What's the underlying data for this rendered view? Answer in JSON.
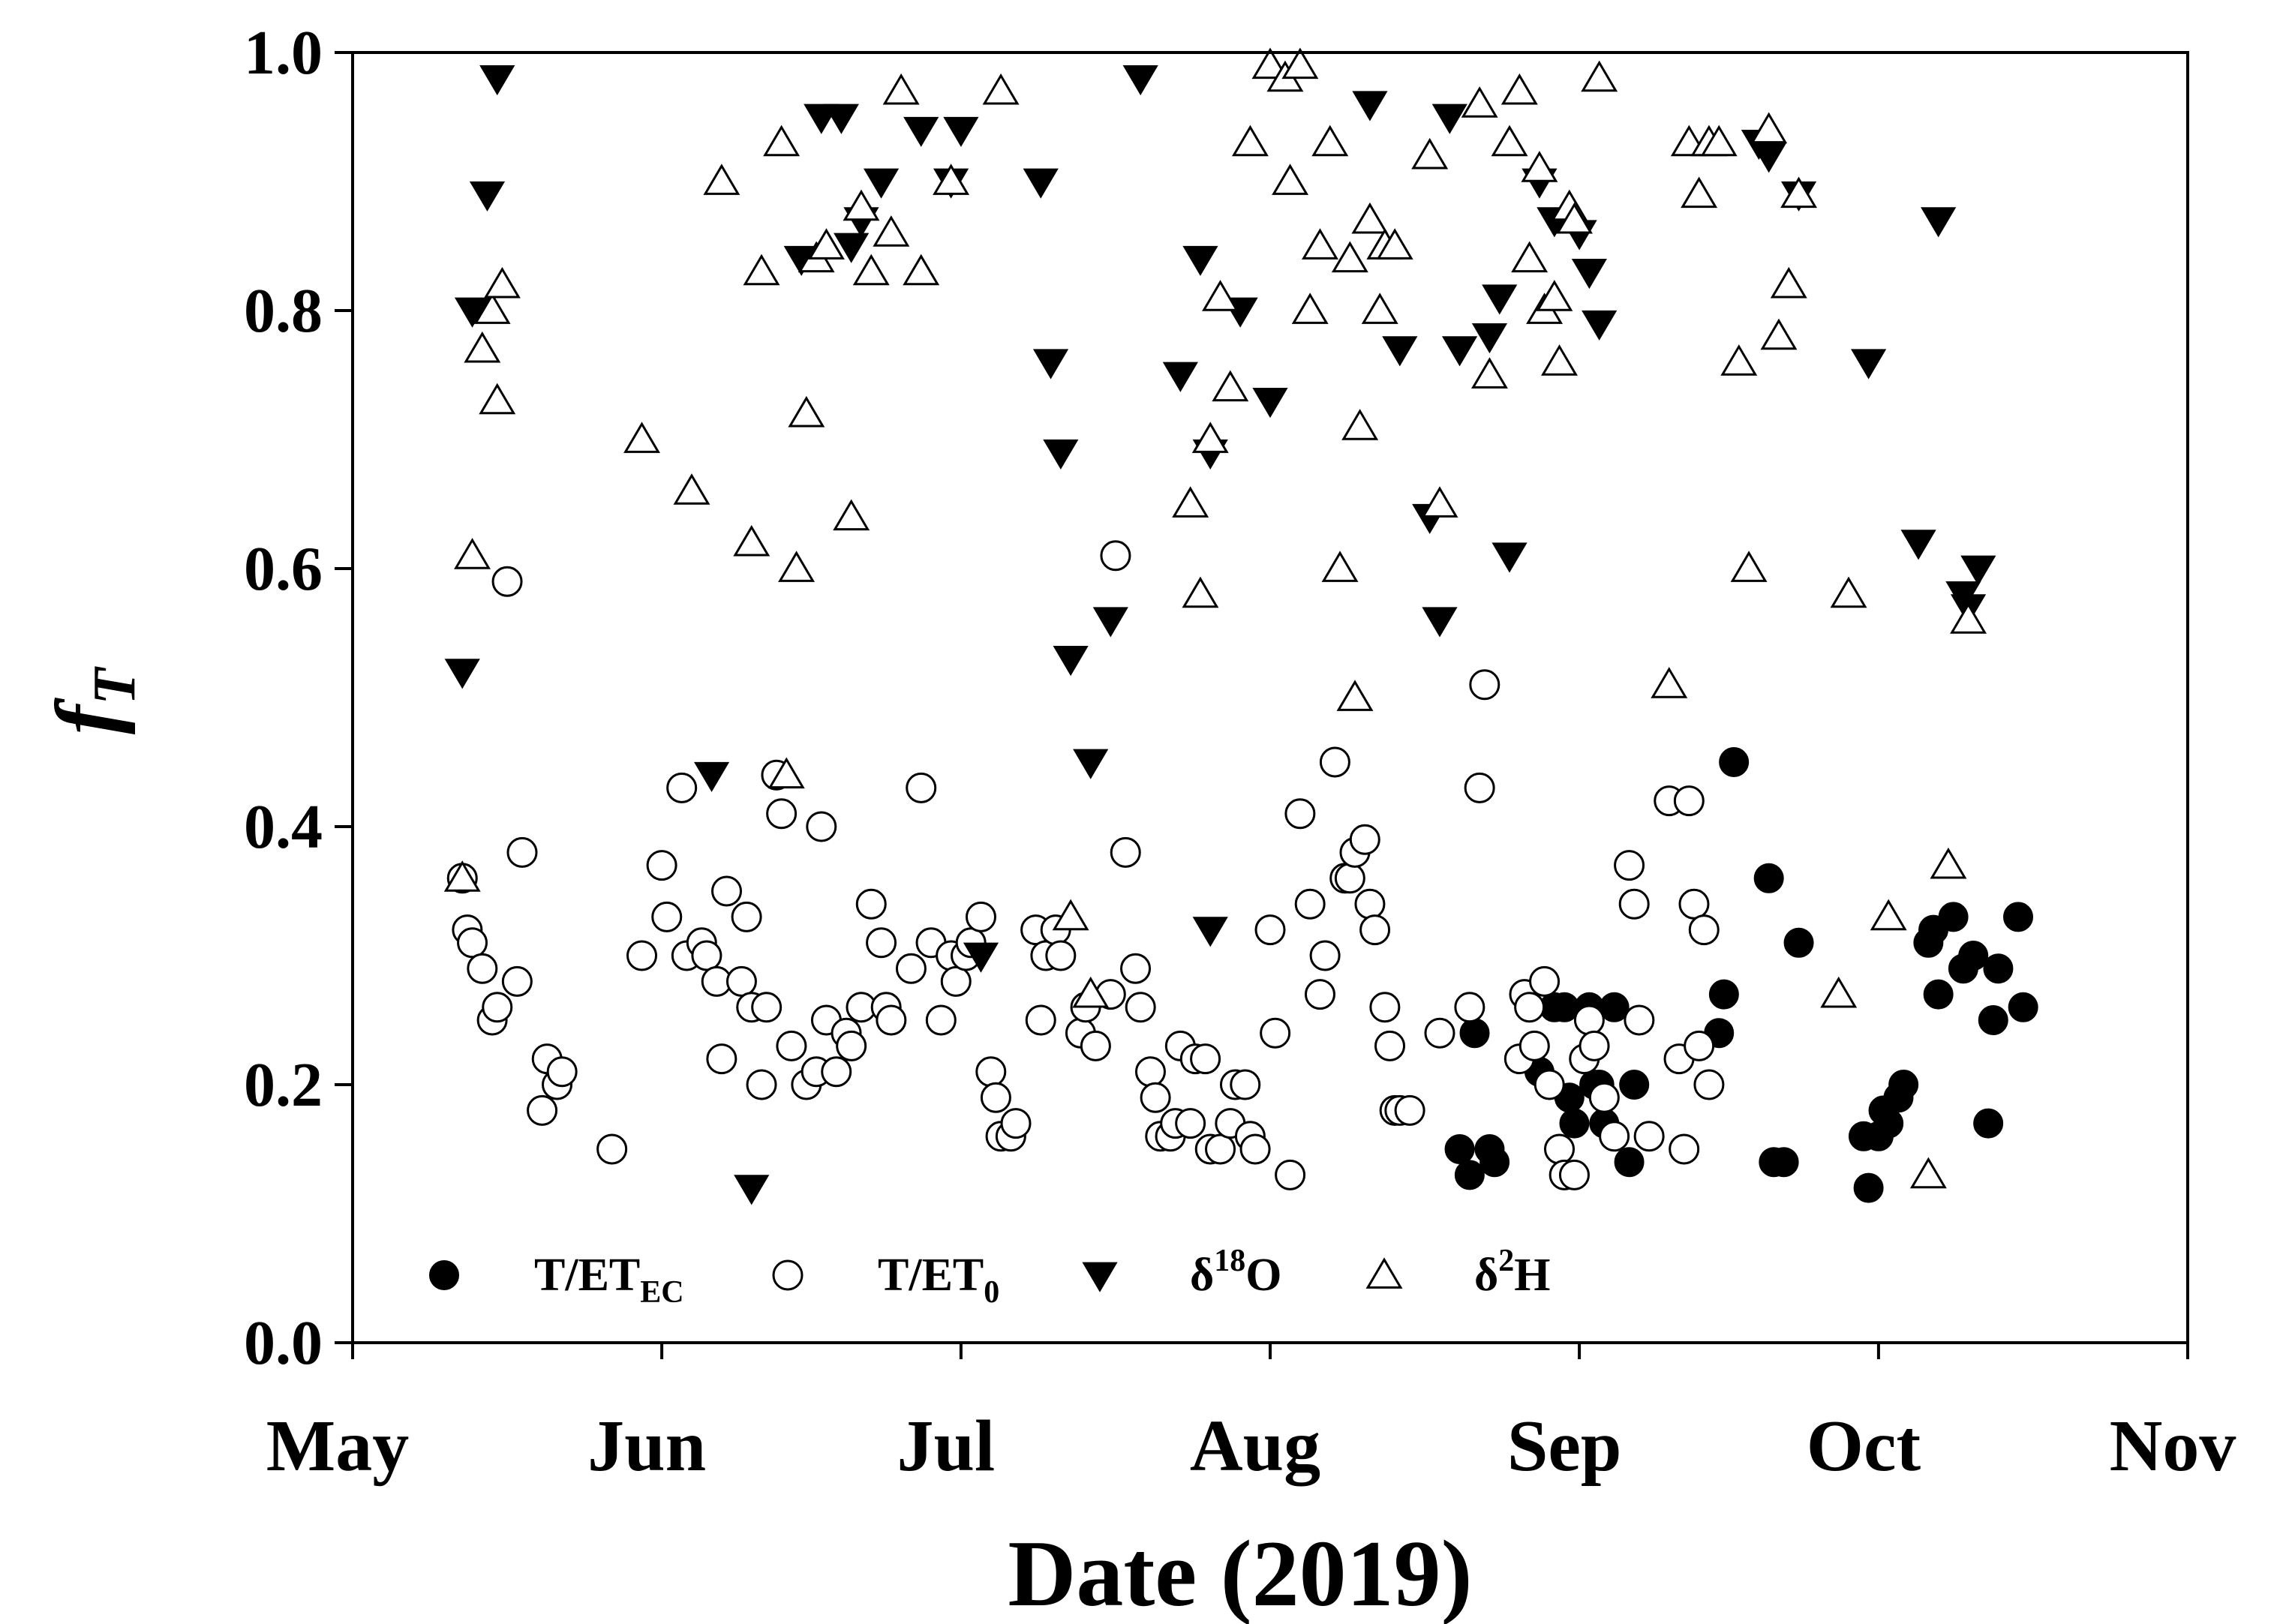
{
  "chart_data": {
    "type": "scatter",
    "xlabel": "Date (2019)",
    "ylabel": "f",
    "ylabel_sub": "T",
    "ylim": [
      0,
      1
    ],
    "y_ticks": [
      "0.0",
      "0.2",
      "0.4",
      "0.6",
      "0.8",
      "1.0"
    ],
    "x_range_doy": [
      121,
      305
    ],
    "x_ticks": [
      {
        "label": "May",
        "doy": 121
      },
      {
        "label": "Jun",
        "doy": 152
      },
      {
        "label": "Jul",
        "doy": 182
      },
      {
        "label": "Aug",
        "doy": 213
      },
      {
        "label": "Sep",
        "doy": 244
      },
      {
        "label": "Oct",
        "doy": 274
      },
      {
        "label": "Nov",
        "doy": 305
      }
    ],
    "series": [
      {
        "name": "T/ET_EC",
        "legend_main": "T/ET",
        "legend_sub": "EC",
        "legend_sup": "",
        "marker": "filled-circle",
        "points": [
          [
            232,
            0.15
          ],
          [
            233,
            0.13
          ],
          [
            233.5,
            0.24
          ],
          [
            235,
            0.15
          ],
          [
            235.5,
            0.14
          ],
          [
            240,
            0.21
          ],
          [
            241.5,
            0.26
          ],
          [
            242.5,
            0.26
          ],
          [
            243,
            0.19
          ],
          [
            243.5,
            0.17
          ],
          [
            245,
            0.26
          ],
          [
            245.5,
            0.2
          ],
          [
            246,
            0.2
          ],
          [
            246.5,
            0.17
          ],
          [
            247.5,
            0.26
          ],
          [
            249,
            0.14
          ],
          [
            249.5,
            0.2
          ],
          [
            258,
            0.24
          ],
          [
            258.5,
            0.27
          ],
          [
            259.5,
            0.45
          ],
          [
            263,
            0.36
          ],
          [
            263.5,
            0.14
          ],
          [
            264.5,
            0.14
          ],
          [
            266,
            0.31
          ],
          [
            272.5,
            0.16
          ],
          [
            273,
            0.12
          ],
          [
            274,
            0.16
          ],
          [
            274.5,
            0.18
          ],
          [
            275,
            0.17
          ],
          [
            276,
            0.19
          ],
          [
            276.5,
            0.2
          ],
          [
            279,
            0.31
          ],
          [
            279.5,
            0.32
          ],
          [
            280,
            0.27
          ],
          [
            281.5,
            0.33
          ],
          [
            282.5,
            0.29
          ],
          [
            283.5,
            0.3
          ],
          [
            285,
            0.17
          ],
          [
            285.5,
            0.25
          ],
          [
            286,
            0.29
          ],
          [
            288,
            0.33
          ],
          [
            288.5,
            0.26
          ]
        ]
      },
      {
        "name": "T/ET_0",
        "legend_main": "T/ET",
        "legend_sub": "0",
        "legend_sup": "",
        "marker": "open-circle",
        "points": [
          [
            132,
            0.36
          ],
          [
            132.5,
            0.32
          ],
          [
            133,
            0.31
          ],
          [
            134,
            0.29
          ],
          [
            135,
            0.25
          ],
          [
            135.5,
            0.26
          ],
          [
            136.5,
            0.59
          ],
          [
            137.5,
            0.28
          ],
          [
            138,
            0.38
          ],
          [
            140,
            0.18
          ],
          [
            140.5,
            0.22
          ],
          [
            141.5,
            0.2
          ],
          [
            142,
            0.21
          ],
          [
            147,
            0.15
          ],
          [
            150,
            0.3
          ],
          [
            152,
            0.37
          ],
          [
            152.5,
            0.33
          ],
          [
            154,
            0.43
          ],
          [
            154.5,
            0.3
          ],
          [
            156,
            0.31
          ],
          [
            156.5,
            0.3
          ],
          [
            157.5,
            0.28
          ],
          [
            158,
            0.22
          ],
          [
            158.5,
            0.35
          ],
          [
            160,
            0.28
          ],
          [
            160.5,
            0.33
          ],
          [
            161,
            0.26
          ],
          [
            162,
            0.2
          ],
          [
            162.5,
            0.26
          ],
          [
            163.5,
            0.44
          ],
          [
            164,
            0.41
          ],
          [
            165,
            0.23
          ],
          [
            166.5,
            0.2
          ],
          [
            167.5,
            0.21
          ],
          [
            168,
            0.4
          ],
          [
            168.5,
            0.25
          ],
          [
            169.5,
            0.21
          ],
          [
            170.5,
            0.24
          ],
          [
            171,
            0.23
          ],
          [
            172,
            0.26
          ],
          [
            173,
            0.34
          ],
          [
            174,
            0.31
          ],
          [
            174.5,
            0.26
          ],
          [
            175,
            0.25
          ],
          [
            177,
            0.29
          ],
          [
            178,
            0.43
          ],
          [
            179,
            0.31
          ],
          [
            180,
            0.25
          ],
          [
            181,
            0.3
          ],
          [
            181.5,
            0.28
          ],
          [
            182.5,
            0.3
          ],
          [
            183,
            0.31
          ],
          [
            184,
            0.33
          ],
          [
            185,
            0.21
          ],
          [
            185.5,
            0.19
          ],
          [
            186,
            0.16
          ],
          [
            187,
            0.16
          ],
          [
            187.5,
            0.17
          ],
          [
            189.5,
            0.32
          ],
          [
            190,
            0.25
          ],
          [
            190.5,
            0.3
          ],
          [
            191.5,
            0.32
          ],
          [
            192,
            0.3
          ],
          [
            194,
            0.24
          ],
          [
            194.5,
            0.26
          ],
          [
            195.5,
            0.23
          ],
          [
            197,
            0.27
          ],
          [
            197.5,
            0.61
          ],
          [
            198.5,
            0.38
          ],
          [
            199.5,
            0.29
          ],
          [
            200,
            0.26
          ],
          [
            201,
            0.21
          ],
          [
            201.5,
            0.19
          ],
          [
            202,
            0.16
          ],
          [
            203,
            0.16
          ],
          [
            203.5,
            0.17
          ],
          [
            204,
            0.23
          ],
          [
            205,
            0.17
          ],
          [
            205.5,
            0.22
          ],
          [
            206.5,
            0.22
          ],
          [
            207,
            0.15
          ],
          [
            208,
            0.15
          ],
          [
            209,
            0.17
          ],
          [
            209.5,
            0.2
          ],
          [
            210.5,
            0.2
          ],
          [
            211,
            0.16
          ],
          [
            211.5,
            0.15
          ],
          [
            213,
            0.32
          ],
          [
            213.5,
            0.24
          ],
          [
            215,
            0.13
          ],
          [
            216,
            0.41
          ],
          [
            217,
            0.34
          ],
          [
            218,
            0.27
          ],
          [
            218.5,
            0.3
          ],
          [
            219.5,
            0.45
          ],
          [
            220.5,
            0.36
          ],
          [
            221,
            0.36
          ],
          [
            221.5,
            0.38
          ],
          [
            222.5,
            0.39
          ],
          [
            223,
            0.34
          ],
          [
            223.5,
            0.32
          ],
          [
            224.5,
            0.26
          ],
          [
            225,
            0.23
          ],
          [
            225.5,
            0.18
          ],
          [
            226,
            0.18
          ],
          [
            227,
            0.18
          ],
          [
            230,
            0.24
          ],
          [
            233,
            0.26
          ],
          [
            234,
            0.43
          ],
          [
            234.5,
            0.51
          ],
          [
            238,
            0.22
          ],
          [
            238.5,
            0.27
          ],
          [
            239,
            0.26
          ],
          [
            239.5,
            0.23
          ],
          [
            240.5,
            0.28
          ],
          [
            241,
            0.2
          ],
          [
            242,
            0.15
          ],
          [
            242.5,
            0.13
          ],
          [
            243.5,
            0.13
          ],
          [
            244.5,
            0.22
          ],
          [
            245,
            0.25
          ],
          [
            245.5,
            0.23
          ],
          [
            246.5,
            0.19
          ],
          [
            247.5,
            0.16
          ],
          [
            249,
            0.37
          ],
          [
            249.5,
            0.34
          ],
          [
            250,
            0.25
          ],
          [
            251,
            0.16
          ],
          [
            253,
            0.42
          ],
          [
            254,
            0.22
          ],
          [
            254.5,
            0.15
          ],
          [
            255,
            0.42
          ],
          [
            255.5,
            0.34
          ],
          [
            256,
            0.23
          ],
          [
            256.5,
            0.32
          ],
          [
            257,
            0.2
          ]
        ]
      },
      {
        "name": "δ18O",
        "legend_main": "δ",
        "legend_sub": "",
        "legend_sup": "18",
        "legend_tail": "O",
        "marker": "filled-triangle-down",
        "points": [
          [
            132,
            0.52
          ],
          [
            133,
            0.8
          ],
          [
            134.5,
            0.89
          ],
          [
            135.5,
            0.98
          ],
          [
            157,
            0.44
          ],
          [
            161,
            0.12
          ],
          [
            166,
            0.84
          ],
          [
            168,
            0.95
          ],
          [
            170,
            0.95
          ],
          [
            171,
            0.85
          ],
          [
            172,
            0.87
          ],
          [
            174,
            0.9
          ],
          [
            178,
            0.94
          ],
          [
            181,
            0.9
          ],
          [
            182,
            0.94
          ],
          [
            184,
            0.3
          ],
          [
            190,
            0.9
          ],
          [
            191,
            0.76
          ],
          [
            192,
            0.69
          ],
          [
            193,
            0.53
          ],
          [
            195,
            0.45
          ],
          [
            197,
            0.56
          ],
          [
            200,
            0.98
          ],
          [
            204,
            0.75
          ],
          [
            206,
            0.84
          ],
          [
            207,
            0.69
          ],
          [
            207,
            0.32
          ],
          [
            210,
            0.8
          ],
          [
            213,
            0.73
          ],
          [
            223,
            0.96
          ],
          [
            226,
            0.77
          ],
          [
            229,
            0.64
          ],
          [
            230,
            0.56
          ],
          [
            231,
            0.95
          ],
          [
            232,
            0.77
          ],
          [
            235,
            0.78
          ],
          [
            236,
            0.81
          ],
          [
            237,
            0.61
          ],
          [
            240,
            0.9
          ],
          [
            241.5,
            0.87
          ],
          [
            244,
            0.86
          ],
          [
            245,
            0.83
          ],
          [
            246,
            0.79
          ],
          [
            262,
            0.93
          ],
          [
            263,
            0.92
          ],
          [
            266,
            0.89
          ],
          [
            273,
            0.76
          ],
          [
            278,
            0.62
          ],
          [
            280,
            0.87
          ],
          [
            282.5,
            0.58
          ],
          [
            283,
            0.57
          ],
          [
            284,
            0.6
          ]
        ]
      },
      {
        "name": "δ2H",
        "legend_main": "δ",
        "legend_sub": "",
        "legend_sup": "2",
        "legend_tail": "H",
        "marker": "open-triangle-up",
        "points": [
          [
            132,
            0.36
          ],
          [
            133,
            0.61
          ],
          [
            134,
            0.77
          ],
          [
            135,
            0.8
          ],
          [
            135.5,
            0.73
          ],
          [
            136,
            0.82
          ],
          [
            150,
            0.7
          ],
          [
            155,
            0.66
          ],
          [
            158,
            0.9
          ],
          [
            161,
            0.62
          ],
          [
            162,
            0.83
          ],
          [
            164,
            0.93
          ],
          [
            164.5,
            0.44
          ],
          [
            165.5,
            0.6
          ],
          [
            166.5,
            0.72
          ],
          [
            167.5,
            0.84
          ],
          [
            168.5,
            0.85
          ],
          [
            171,
            0.64
          ],
          [
            172,
            0.88
          ],
          [
            173,
            0.83
          ],
          [
            175,
            0.86
          ],
          [
            176,
            0.97
          ],
          [
            178,
            0.83
          ],
          [
            181,
            0.9
          ],
          [
            186,
            0.97
          ],
          [
            193,
            0.33
          ],
          [
            195,
            0.27
          ],
          [
            205,
            0.65
          ],
          [
            206,
            0.58
          ],
          [
            207,
            0.7
          ],
          [
            208,
            0.81
          ],
          [
            209,
            0.74
          ],
          [
            211,
            0.93
          ],
          [
            213,
            0.99
          ],
          [
            214.5,
            0.98
          ],
          [
            215,
            0.9
          ],
          [
            216,
            0.99
          ],
          [
            217,
            0.8
          ],
          [
            218,
            0.85
          ],
          [
            219,
            0.93
          ],
          [
            220,
            0.6
          ],
          [
            221,
            0.84
          ],
          [
            221.5,
            0.5
          ],
          [
            222,
            0.71
          ],
          [
            223,
            0.87
          ],
          [
            224,
            0.8
          ],
          [
            224.5,
            0.85
          ],
          [
            225.5,
            0.85
          ],
          [
            229,
            0.92
          ],
          [
            230,
            0.65
          ],
          [
            234,
            0.96
          ],
          [
            235,
            0.75
          ],
          [
            237,
            0.93
          ],
          [
            238,
            0.97
          ],
          [
            239,
            0.84
          ],
          [
            240,
            0.91
          ],
          [
            240.5,
            0.8
          ],
          [
            241.5,
            0.81
          ],
          [
            242,
            0.76
          ],
          [
            243,
            0.88
          ],
          [
            243.5,
            0.87
          ],
          [
            246,
            0.98
          ],
          [
            253,
            0.51
          ],
          [
            255,
            0.93
          ],
          [
            256,
            0.89
          ],
          [
            257,
            0.93
          ],
          [
            258,
            0.93
          ],
          [
            260,
            0.76
          ],
          [
            261,
            0.6
          ],
          [
            263,
            0.94
          ],
          [
            264,
            0.78
          ],
          [
            265,
            0.82
          ],
          [
            266,
            0.89
          ],
          [
            270,
            0.27
          ],
          [
            271,
            0.58
          ],
          [
            275,
            0.33
          ],
          [
            279,
            0.13
          ],
          [
            281,
            0.37
          ],
          [
            283,
            0.56
          ]
        ]
      }
    ]
  }
}
